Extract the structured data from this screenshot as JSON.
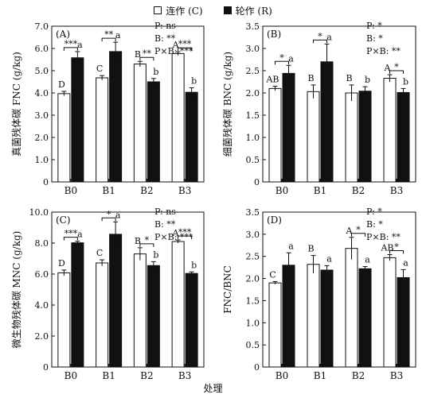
{
  "figure": {
    "legend": [
      {
        "label": "连作 (C)",
        "color": "#ffffff"
      },
      {
        "label": "轮作 (R)",
        "color": "#111111"
      }
    ],
    "xlabel": "处理"
  },
  "chart_data": [
    {
      "type": "bar",
      "panel_label": "(A)",
      "ylabel": "真菌残体碳 FNC (g/kg)",
      "xlabel": "",
      "categories": [
        "B0",
        "B1",
        "B2",
        "B3"
      ],
      "ylim": [
        0,
        7
      ],
      "yticks": [
        "0",
        "1.0",
        "2.0",
        "3.0",
        "4.0",
        "5.0",
        "6.0",
        "7.0"
      ],
      "ytick_values": [
        0,
        1,
        2,
        3,
        4,
        5,
        6,
        7
      ],
      "series": [
        {
          "name": "连作 (C)",
          "color": "#ffffff",
          "values": [
            3.97,
            4.68,
            5.3,
            5.77
          ],
          "errors": [
            0.1,
            0.1,
            0.12,
            0.08
          ],
          "letters": [
            "D",
            "C",
            "B",
            "A"
          ]
        },
        {
          "name": "轮作 (R)",
          "color": "#111111",
          "values": [
            5.58,
            5.86,
            4.5,
            4.03
          ],
          "errors": [
            0.28,
            0.42,
            0.15,
            0.2
          ],
          "letters": [
            "a",
            "a",
            "b",
            "b"
          ]
        }
      ],
      "significance": [
        "***",
        "**",
        "**",
        "***"
      ],
      "stats": [
        "P: ns",
        "B: **",
        "P×B: ***"
      ],
      "grid": false
    },
    {
      "type": "bar",
      "panel_label": "(B)",
      "ylabel": "细菌残体碳 BNC (g/kg)",
      "xlabel": "",
      "categories": [
        "B0",
        "B1",
        "B2",
        "B3"
      ],
      "ylim": [
        0,
        3.5
      ],
      "yticks": [
        "0",
        "0.5",
        "1.0",
        "1.5",
        "2.0",
        "2.5",
        "3.0",
        "3.5"
      ],
      "ytick_values": [
        0,
        0.5,
        1,
        1.5,
        2,
        2.5,
        3,
        3.5
      ],
      "series": [
        {
          "name": "连作 (C)",
          "color": "#ffffff",
          "values": [
            2.1,
            2.03,
            2.0,
            2.33
          ],
          "errors": [
            0.05,
            0.15,
            0.18,
            0.08
          ],
          "letters": [
            "AB",
            "B",
            "B",
            "A"
          ]
        },
        {
          "name": "轮作 (R)",
          "color": "#111111",
          "values": [
            2.44,
            2.7,
            2.04,
            2.01
          ],
          "errors": [
            0.18,
            0.4,
            0.1,
            0.09
          ],
          "letters": [
            "a",
            "a",
            "b",
            "b"
          ]
        }
      ],
      "significance": [
        "*",
        "*",
        "",
        "*"
      ],
      "stats": [
        "P: *",
        "B: *",
        "P×B: **"
      ],
      "grid": false
    },
    {
      "type": "bar",
      "panel_label": "(C)",
      "ylabel": "微生物残体碳 MNC (g/kg)",
      "xlabel": "",
      "categories": [
        "B0",
        "B1",
        "B2",
        "B3"
      ],
      "ylim": [
        0,
        10
      ],
      "yticks": [
        "0",
        "2.0",
        "4.0",
        "6.0",
        "8.0",
        "10.0"
      ],
      "ytick_values": [
        0,
        2,
        4,
        6,
        8,
        10
      ],
      "series": [
        {
          "name": "连作 (C)",
          "color": "#ffffff",
          "values": [
            6.08,
            6.72,
            7.3,
            8.1
          ],
          "errors": [
            0.18,
            0.2,
            0.4,
            0.1
          ],
          "letters": [
            "D",
            "C",
            "B",
            "A"
          ]
        },
        {
          "name": "轮作 (R)",
          "color": "#111111",
          "values": [
            8.02,
            8.57,
            6.55,
            6.04
          ],
          "errors": [
            0.1,
            0.8,
            0.25,
            0.1
          ],
          "letters": [
            "a",
            "a",
            "b",
            "b"
          ]
        }
      ],
      "significance": [
        "***",
        "*",
        "*",
        "***"
      ],
      "stats": [
        "P: ns",
        "B: **",
        "P×B: ***"
      ],
      "grid": false
    },
    {
      "type": "bar",
      "panel_label": "(D)",
      "ylabel": "FNC/BNC",
      "xlabel": "",
      "categories": [
        "B0",
        "B1",
        "B2",
        "B3"
      ],
      "ylim": [
        0,
        3.5
      ],
      "yticks": [
        "0",
        "0.5",
        "1.0",
        "1.5",
        "2.0",
        "2.5",
        "3.0",
        "3.5"
      ],
      "ytick_values": [
        0,
        0.5,
        1,
        1.5,
        2,
        2.5,
        3,
        3.5
      ],
      "series": [
        {
          "name": "连作 (C)",
          "color": "#ffffff",
          "values": [
            1.9,
            2.32,
            2.68,
            2.47
          ],
          "errors": [
            0.03,
            0.2,
            0.25,
            0.07
          ],
          "letters": [
            "C",
            "B",
            "A",
            "AB"
          ]
        },
        {
          "name": "轮作 (R)",
          "color": "#111111",
          "values": [
            2.3,
            2.19,
            2.22,
            2.02
          ],
          "errors": [
            0.28,
            0.1,
            0.05,
            0.18
          ],
          "letters": [
            "a",
            "a",
            "a",
            "a"
          ]
        }
      ],
      "significance": [
        "",
        "",
        "*",
        "*"
      ],
      "stats": [
        "P: *",
        "B: *",
        "P×B: **"
      ],
      "grid": false
    }
  ]
}
